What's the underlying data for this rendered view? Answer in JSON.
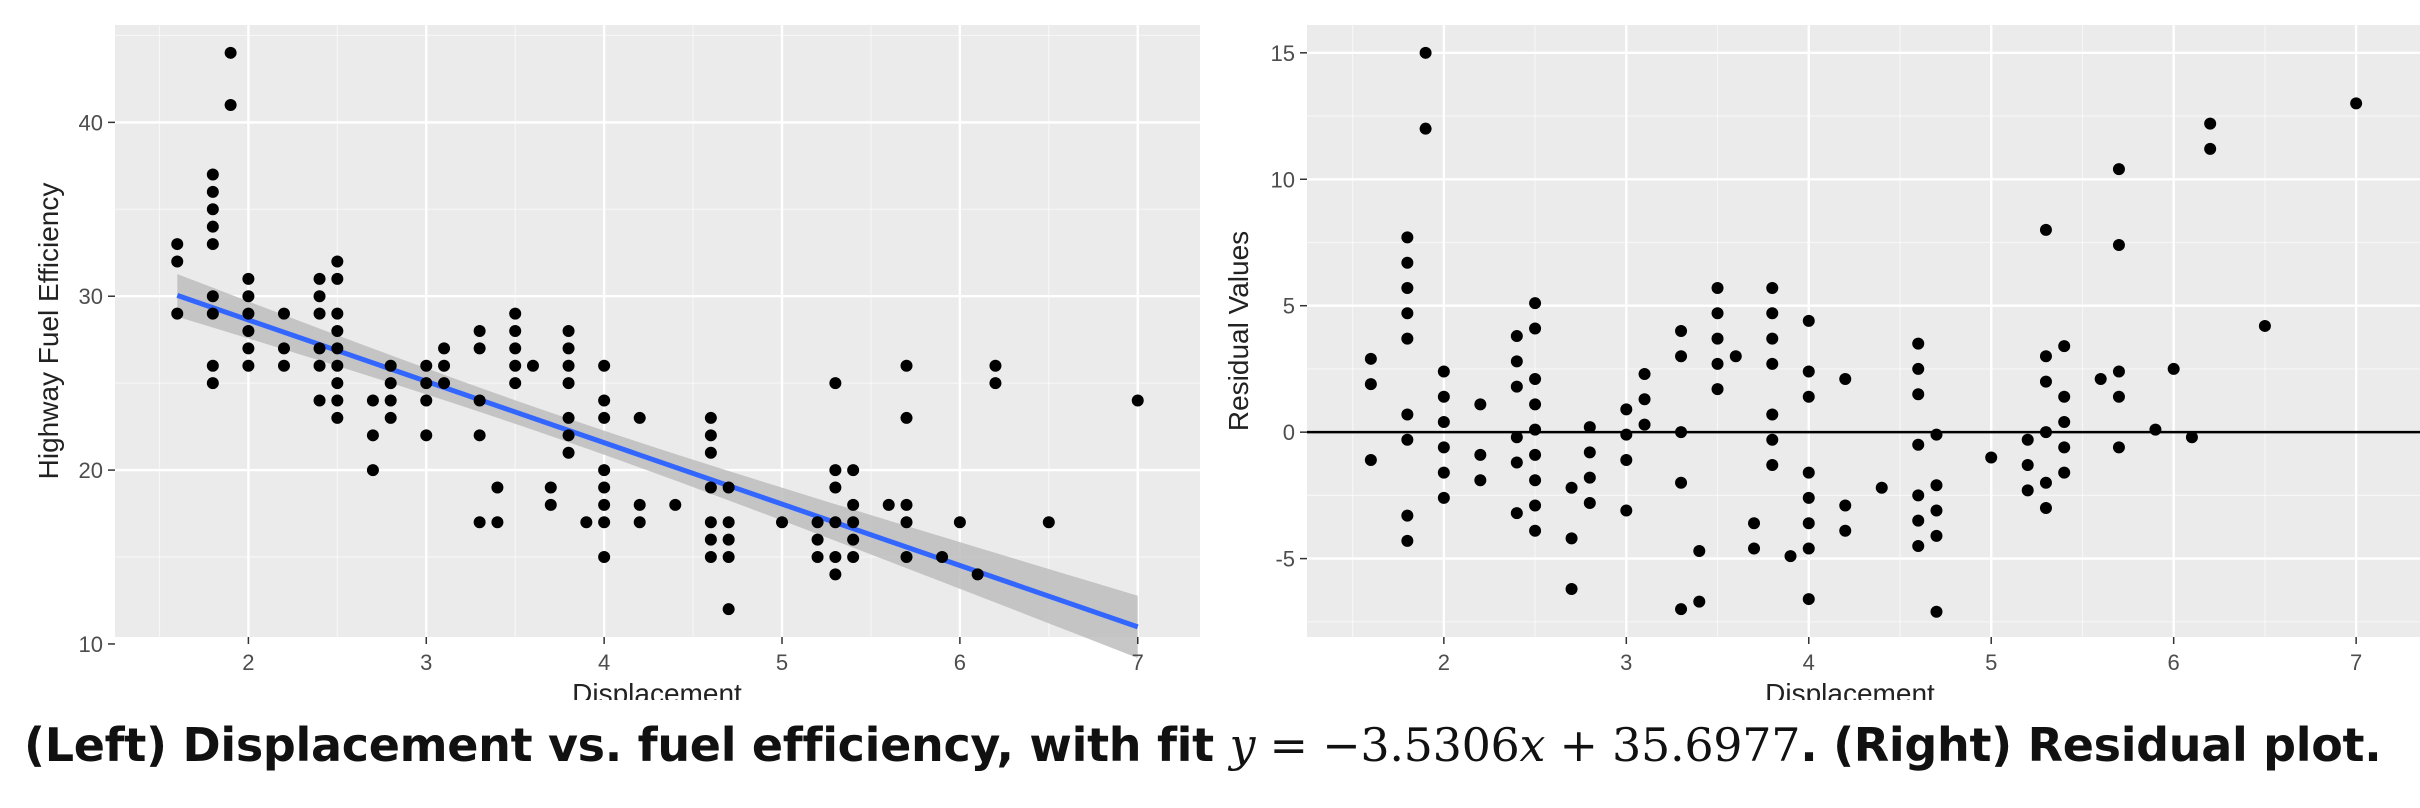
{
  "caption": {
    "part1": "(Left) Displacement vs. fuel efficiency, with fit ",
    "part2": ". (Right) Residual plot.",
    "eq_y": "y",
    "eq_equals": " = −3.5306",
    "eq_x": "x",
    "eq_rest": " + 35.6977"
  },
  "colors": {
    "panel": "#ebebeb",
    "gridMajor": "#ffffff",
    "point": "#000000",
    "fitLine": "#3366ff",
    "band": "#bdbdbd",
    "zeroLine": "#000000"
  },
  "chart_data": [
    {
      "type": "scatter",
      "title": "",
      "xlabel": "Displacement",
      "ylabel": "Highway Fuel Efficiency",
      "xlim": [
        1.25,
        7.35
      ],
      "ylim": [
        10.4,
        45.6
      ],
      "xticks": [
        2,
        3,
        4,
        5,
        6,
        7
      ],
      "yticks": [
        10,
        20,
        30,
        40
      ],
      "grid": true,
      "fit": {
        "slope": -3.5306,
        "intercept": 35.6977,
        "x_range": [
          1.6,
          7.0
        ],
        "confidence_band": true
      },
      "points": [
        [
          1.6,
          33
        ],
        [
          1.6,
          32
        ],
        [
          1.6,
          29
        ],
        [
          1.8,
          37
        ],
        [
          1.8,
          36
        ],
        [
          1.8,
          35
        ],
        [
          1.8,
          34
        ],
        [
          1.8,
          33
        ],
        [
          1.8,
          30
        ],
        [
          1.8,
          29
        ],
        [
          1.8,
          26
        ],
        [
          1.8,
          25
        ],
        [
          1.9,
          44
        ],
        [
          1.9,
          41
        ],
        [
          2.0,
          31
        ],
        [
          2.0,
          30
        ],
        [
          2.0,
          29
        ],
        [
          2.0,
          28
        ],
        [
          2.0,
          27
        ],
        [
          2.0,
          26
        ],
        [
          2.2,
          29
        ],
        [
          2.2,
          27
        ],
        [
          2.2,
          26
        ],
        [
          2.4,
          31
        ],
        [
          2.4,
          30
        ],
        [
          2.4,
          29
        ],
        [
          2.4,
          27
        ],
        [
          2.4,
          26
        ],
        [
          2.4,
          24
        ],
        [
          2.5,
          32
        ],
        [
          2.5,
          31
        ],
        [
          2.5,
          29
        ],
        [
          2.5,
          28
        ],
        [
          2.5,
          27
        ],
        [
          2.5,
          26
        ],
        [
          2.5,
          25
        ],
        [
          2.5,
          24
        ],
        [
          2.5,
          23
        ],
        [
          2.7,
          24
        ],
        [
          2.7,
          22
        ],
        [
          2.7,
          20
        ],
        [
          2.8,
          26
        ],
        [
          2.8,
          25
        ],
        [
          2.8,
          24
        ],
        [
          2.8,
          23
        ],
        [
          3.0,
          26
        ],
        [
          3.0,
          25
        ],
        [
          3.0,
          24
        ],
        [
          3.0,
          22
        ],
        [
          3.1,
          27
        ],
        [
          3.1,
          26
        ],
        [
          3.1,
          25
        ],
        [
          3.3,
          28
        ],
        [
          3.3,
          27
        ],
        [
          3.3,
          24
        ],
        [
          3.3,
          22
        ],
        [
          3.3,
          17
        ],
        [
          3.4,
          19
        ],
        [
          3.4,
          17
        ],
        [
          3.5,
          29
        ],
        [
          3.5,
          28
        ],
        [
          3.5,
          27
        ],
        [
          3.5,
          26
        ],
        [
          3.5,
          25
        ],
        [
          3.6,
          26
        ],
        [
          3.7,
          19
        ],
        [
          3.7,
          18
        ],
        [
          3.8,
          28
        ],
        [
          3.8,
          27
        ],
        [
          3.8,
          26
        ],
        [
          3.8,
          25
        ],
        [
          3.8,
          23
        ],
        [
          3.8,
          22
        ],
        [
          3.8,
          21
        ],
        [
          3.9,
          17
        ],
        [
          4.0,
          26
        ],
        [
          4.0,
          24
        ],
        [
          4.0,
          23
        ],
        [
          4.0,
          20
        ],
        [
          4.0,
          19
        ],
        [
          4.0,
          18
        ],
        [
          4.0,
          17
        ],
        [
          4.0,
          15
        ],
        [
          4.2,
          23
        ],
        [
          4.2,
          18
        ],
        [
          4.2,
          17
        ],
        [
          4.4,
          18
        ],
        [
          4.6,
          23
        ],
        [
          4.6,
          22
        ],
        [
          4.6,
          21
        ],
        [
          4.6,
          19
        ],
        [
          4.6,
          17
        ],
        [
          4.6,
          16
        ],
        [
          4.6,
          15
        ],
        [
          4.7,
          19
        ],
        [
          4.7,
          17
        ],
        [
          4.7,
          16
        ],
        [
          4.7,
          15
        ],
        [
          4.7,
          12
        ],
        [
          5.0,
          17
        ],
        [
          5.2,
          17
        ],
        [
          5.2,
          16
        ],
        [
          5.2,
          15
        ],
        [
          5.3,
          25
        ],
        [
          5.3,
          20
        ],
        [
          5.3,
          19
        ],
        [
          5.3,
          17
        ],
        [
          5.3,
          15
        ],
        [
          5.3,
          14
        ],
        [
          5.4,
          20
        ],
        [
          5.4,
          18
        ],
        [
          5.4,
          17
        ],
        [
          5.4,
          16
        ],
        [
          5.4,
          15
        ],
        [
          5.6,
          18
        ],
        [
          5.7,
          26
        ],
        [
          5.7,
          23
        ],
        [
          5.7,
          18
        ],
        [
          5.7,
          17
        ],
        [
          5.7,
          15
        ],
        [
          5.9,
          15
        ],
        [
          6.0,
          17
        ],
        [
          6.1,
          14
        ],
        [
          6.2,
          26
        ],
        [
          6.2,
          25
        ],
        [
          6.5,
          17
        ],
        [
          7.0,
          24
        ]
      ]
    },
    {
      "type": "scatter",
      "title": "",
      "xlabel": "Displacement",
      "ylabel": "Residual Values",
      "xlim": [
        1.25,
        7.35
      ],
      "ylim": [
        -8.1,
        16.1
      ],
      "xticks": [
        2,
        3,
        4,
        5,
        6,
        7
      ],
      "yticks": [
        -5,
        0,
        5,
        10,
        15
      ],
      "grid": true,
      "reference_line_y": 0,
      "points": [
        [
          1.6,
          2.9
        ],
        [
          1.6,
          1.9
        ],
        [
          1.6,
          -1.1
        ],
        [
          1.8,
          7.7
        ],
        [
          1.8,
          6.7
        ],
        [
          1.8,
          5.7
        ],
        [
          1.8,
          4.7
        ],
        [
          1.8,
          3.7
        ],
        [
          1.8,
          0.7
        ],
        [
          1.8,
          -0.3
        ],
        [
          1.8,
          -3.3
        ],
        [
          1.8,
          -4.3
        ],
        [
          1.9,
          15.0
        ],
        [
          1.9,
          12.0
        ],
        [
          2.0,
          2.4
        ],
        [
          2.0,
          1.4
        ],
        [
          2.0,
          0.4
        ],
        [
          2.0,
          -0.6
        ],
        [
          2.0,
          -1.6
        ],
        [
          2.0,
          -2.6
        ],
        [
          2.2,
          1.1
        ],
        [
          2.2,
          -0.9
        ],
        [
          2.2,
          -1.9
        ],
        [
          2.4,
          3.8
        ],
        [
          2.4,
          2.8
        ],
        [
          2.4,
          1.8
        ],
        [
          2.4,
          -0.2
        ],
        [
          2.4,
          -1.2
        ],
        [
          2.4,
          -3.2
        ],
        [
          2.5,
          5.1
        ],
        [
          2.5,
          4.1
        ],
        [
          2.5,
          2.1
        ],
        [
          2.5,
          1.1
        ],
        [
          2.5,
          0.1
        ],
        [
          2.5,
          -0.9
        ],
        [
          2.5,
          -1.9
        ],
        [
          2.5,
          -2.9
        ],
        [
          2.5,
          -3.9
        ],
        [
          2.7,
          -2.2
        ],
        [
          2.7,
          -4.2
        ],
        [
          2.7,
          -6.2
        ],
        [
          2.8,
          0.2
        ],
        [
          2.8,
          -0.8
        ],
        [
          2.8,
          -1.8
        ],
        [
          2.8,
          -2.8
        ],
        [
          3.0,
          0.9
        ],
        [
          3.0,
          -0.1
        ],
        [
          3.0,
          -1.1
        ],
        [
          3.0,
          -3.1
        ],
        [
          3.1,
          2.3
        ],
        [
          3.1,
          1.3
        ],
        [
          3.1,
          0.3
        ],
        [
          3.3,
          4.0
        ],
        [
          3.3,
          3.0
        ],
        [
          3.3,
          0.0
        ],
        [
          3.3,
          -2.0
        ],
        [
          3.3,
          -7.0
        ],
        [
          3.4,
          -4.7
        ],
        [
          3.4,
          -6.7
        ],
        [
          3.5,
          5.7
        ],
        [
          3.5,
          4.7
        ],
        [
          3.5,
          3.7
        ],
        [
          3.5,
          2.7
        ],
        [
          3.5,
          1.7
        ],
        [
          3.6,
          3.0
        ],
        [
          3.7,
          -3.6
        ],
        [
          3.7,
          -4.6
        ],
        [
          3.8,
          5.7
        ],
        [
          3.8,
          4.7
        ],
        [
          3.8,
          3.7
        ],
        [
          3.8,
          2.7
        ],
        [
          3.8,
          0.7
        ],
        [
          3.8,
          -0.3
        ],
        [
          3.8,
          -1.3
        ],
        [
          3.9,
          -4.9
        ],
        [
          4.0,
          4.4
        ],
        [
          4.0,
          2.4
        ],
        [
          4.0,
          1.4
        ],
        [
          4.0,
          -1.6
        ],
        [
          4.0,
          -2.6
        ],
        [
          4.0,
          -3.6
        ],
        [
          4.0,
          -4.6
        ],
        [
          4.0,
          -6.6
        ],
        [
          4.2,
          2.1
        ],
        [
          4.2,
          -2.9
        ],
        [
          4.2,
          -3.9
        ],
        [
          4.4,
          -2.2
        ],
        [
          4.6,
          3.5
        ],
        [
          4.6,
          2.5
        ],
        [
          4.6,
          1.5
        ],
        [
          4.6,
          -0.5
        ],
        [
          4.6,
          -2.5
        ],
        [
          4.6,
          -3.5
        ],
        [
          4.6,
          -4.5
        ],
        [
          4.7,
          -0.1
        ],
        [
          4.7,
          -2.1
        ],
        [
          4.7,
          -3.1
        ],
        [
          4.7,
          -4.1
        ],
        [
          4.7,
          -7.1
        ],
        [
          5.0,
          -1.0
        ],
        [
          5.2,
          -0.3
        ],
        [
          5.2,
          -1.3
        ],
        [
          5.2,
          -2.3
        ],
        [
          5.3,
          8.0
        ],
        [
          5.3,
          3.0
        ],
        [
          5.3,
          2.0
        ],
        [
          5.3,
          0.0
        ],
        [
          5.3,
          -2.0
        ],
        [
          5.3,
          -3.0
        ],
        [
          5.4,
          3.4
        ],
        [
          5.4,
          1.4
        ],
        [
          5.4,
          0.4
        ],
        [
          5.4,
          -0.6
        ],
        [
          5.4,
          -1.6
        ],
        [
          5.6,
          2.1
        ],
        [
          5.7,
          10.4
        ],
        [
          5.7,
          7.4
        ],
        [
          5.7,
          2.4
        ],
        [
          5.7,
          1.4
        ],
        [
          5.7,
          -0.6
        ],
        [
          5.9,
          0.1
        ],
        [
          6.0,
          2.5
        ],
        [
          6.1,
          -0.2
        ],
        [
          6.2,
          12.2
        ],
        [
          6.2,
          11.2
        ],
        [
          6.5,
          4.2
        ],
        [
          7.0,
          13.0
        ]
      ]
    }
  ]
}
